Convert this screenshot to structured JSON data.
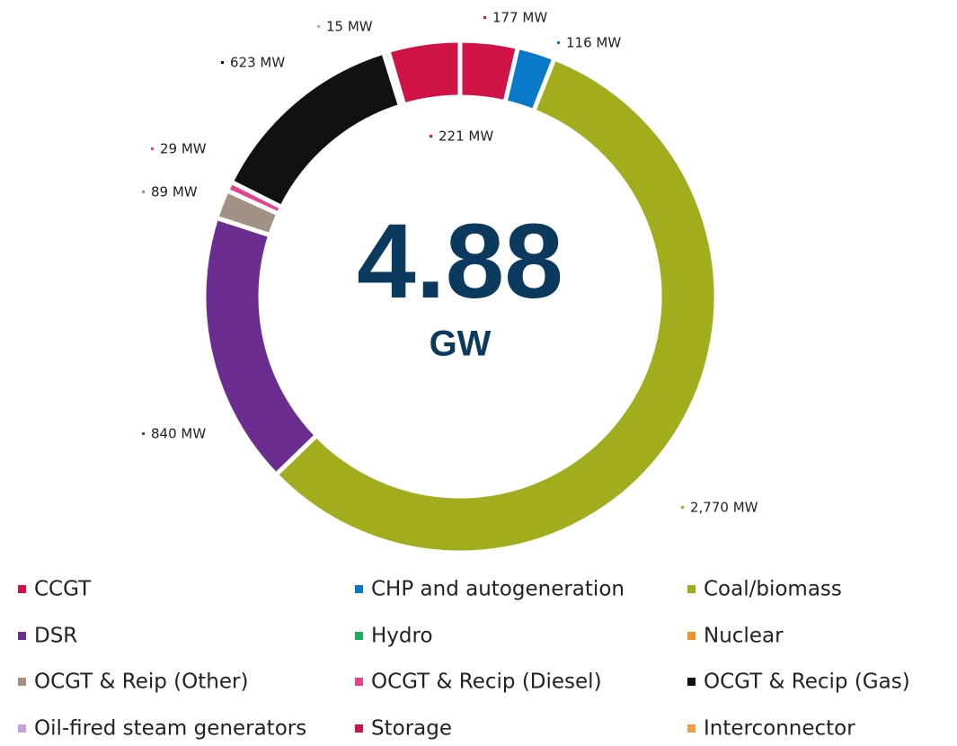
{
  "chart_data": {
    "type": "donut",
    "center_text": "4.88",
    "center_unit": "GW",
    "categories": [
      "CCGT",
      "CHP and autogeneration",
      "Coal/biomass",
      "DSR",
      "Hydro",
      "Nuclear",
      "OCGT & Reip (Other)",
      "OCGT & Recip (Diesel)",
      "OCGT & Recip (Gas)",
      "Oil-fired steam generators",
      "Storage",
      "Interconnector"
    ],
    "values": [
      177,
      116,
      2770,
      840,
      0,
      0,
      89,
      29,
      623,
      15,
      221,
      0
    ],
    "value_labels": [
      "177 MW",
      "116 MW",
      "2,770 MW",
      "840 MW",
      null,
      null,
      "89 MW",
      "29 MW",
      "623 MW",
      "15 MW",
      "221 MW",
      null
    ],
    "colors": [
      "#d01246",
      "#0a78c8",
      "#a2ad1e",
      "#6b2d90",
      "#1aae5a",
      "#f5922a",
      "#a39186",
      "#ea3f8e",
      "#111111",
      "#c7a0d8",
      "#d01246",
      "#f39a4a"
    ],
    "legend": "bottom"
  }
}
